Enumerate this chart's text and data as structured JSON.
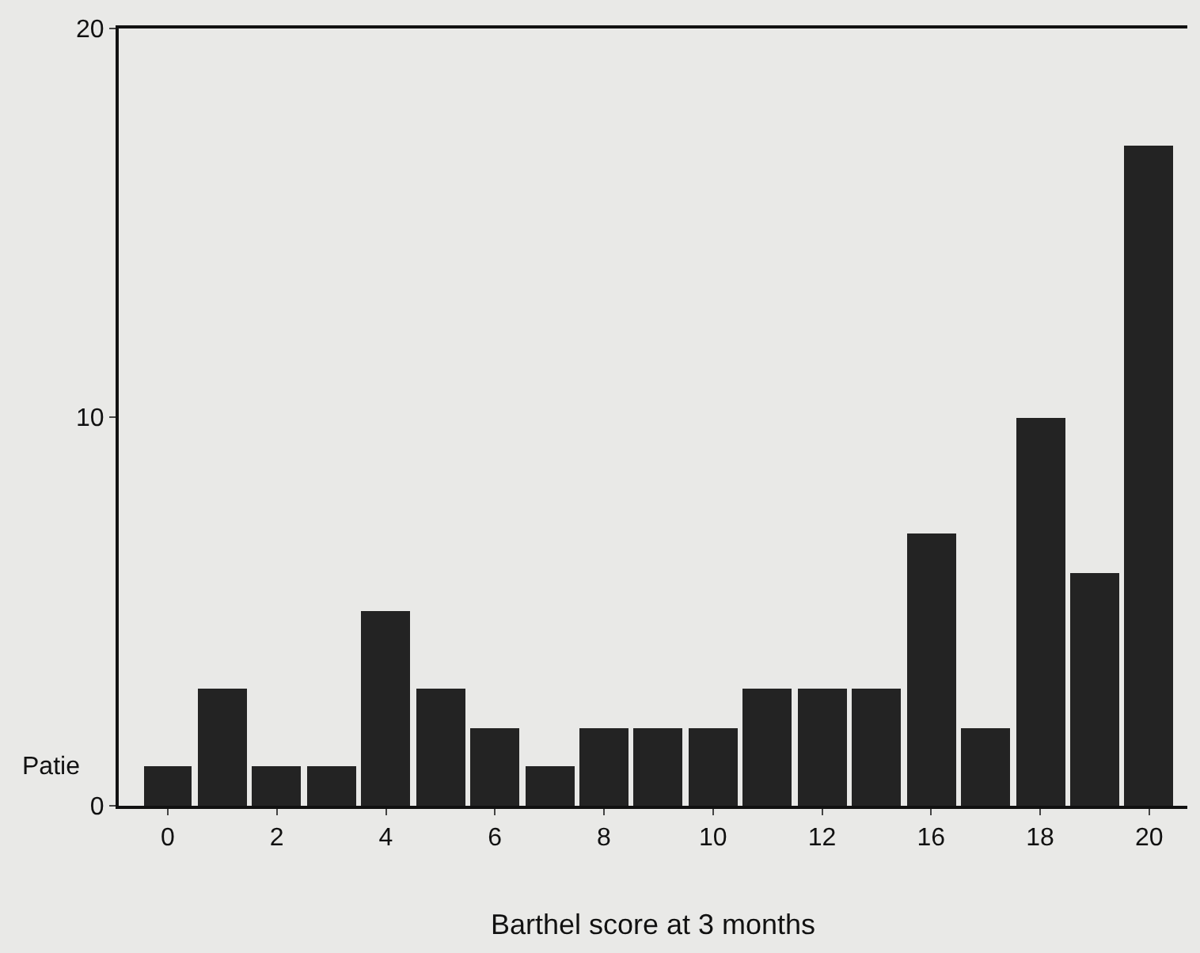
{
  "chart_data": {
    "type": "bar",
    "xlabel": "Barthel score at 3 months",
    "ylabel": "Patie",
    "categories": [
      "0",
      null,
      "2",
      null,
      "4",
      null,
      "6",
      null,
      "8",
      null,
      "10",
      null,
      "12",
      null,
      "16",
      null,
      "18",
      null,
      "20"
    ],
    "values": [
      1,
      3,
      1,
      1,
      5,
      3,
      2,
      1,
      2,
      2,
      2,
      3,
      3,
      3,
      7,
      2,
      10,
      6,
      17
    ],
    "color": "#232323",
    "ylim": [
      0,
      20
    ],
    "yticks": [
      0,
      10,
      20
    ],
    "grid": false
  }
}
